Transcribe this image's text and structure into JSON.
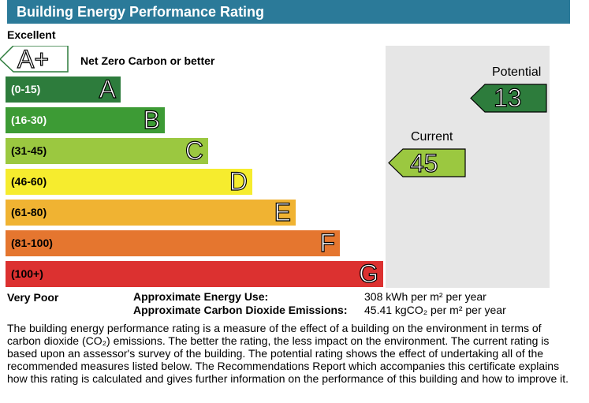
{
  "header": {
    "title": "Building Energy Performance Rating"
  },
  "scale": {
    "top_label": "Excellent",
    "bottom_label": "Very Poor",
    "aplus": {
      "letter": "A+",
      "text": "Net Zero Carbon or better",
      "color": "#ffffff"
    },
    "bands": [
      {
        "letter": "A",
        "range": "(0-15)",
        "color": "#2d7c3c",
        "text_color": "#ffffff"
      },
      {
        "letter": "B",
        "range": "(16-30)",
        "color": "#3d9b35",
        "text_color": "#ffffff"
      },
      {
        "letter": "C",
        "range": "(31-45)",
        "color": "#9bc840",
        "text_color": "#000000"
      },
      {
        "letter": "D",
        "range": "(46-60)",
        "color": "#f6ec2e",
        "text_color": "#000000"
      },
      {
        "letter": "E",
        "range": "(61-80)",
        "color": "#f0b332",
        "text_color": "#000000"
      },
      {
        "letter": "F",
        "range": "(81-100)",
        "color": "#e5762f",
        "text_color": "#000000"
      },
      {
        "letter": "G",
        "range": "(100+)",
        "color": "#dc3130",
        "text_color": "#000000"
      }
    ]
  },
  "chart_data": {
    "type": "bar",
    "title": "Building Energy Performance Rating",
    "categories": [
      "A+",
      "A",
      "B",
      "C",
      "D",
      "E",
      "F",
      "G"
    ],
    "ranges": [
      "Net Zero Carbon or better",
      "(0-15)",
      "(16-30)",
      "(31-45)",
      "(46-60)",
      "(61-80)",
      "(81-100)",
      "(100+)"
    ],
    "series": [
      {
        "name": "Potential",
        "value": 13,
        "band": "A"
      },
      {
        "name": "Current",
        "value": 45,
        "band": "C"
      }
    ]
  },
  "ratings": {
    "potential": {
      "label": "Potential",
      "value": "13",
      "color": "#2d7c3c"
    },
    "current": {
      "label": "Current",
      "value": "45",
      "color": "#9bc840"
    }
  },
  "metrics": {
    "energy_label": "Approximate Energy Use:",
    "energy_value": "308 kWh per m² per year",
    "co2_label": "Approximate Carbon Dioxide Emissions:",
    "co2_value": "45.41 kgCO₂ per m² per year"
  },
  "description": "The building energy performance rating is a measure of the effect of a building on the environment in terms of carbon dioxide (CO₂) emissions. The better the rating, the less impact on the environment. The current rating is based upon an assessor's survey of the building. The potential rating shows the effect of undertaking all of the recommended measures listed below. The Recommendations Report which accompanies this certificate explains how this rating is calculated and gives further information on the performance of this building and how to improve it."
}
